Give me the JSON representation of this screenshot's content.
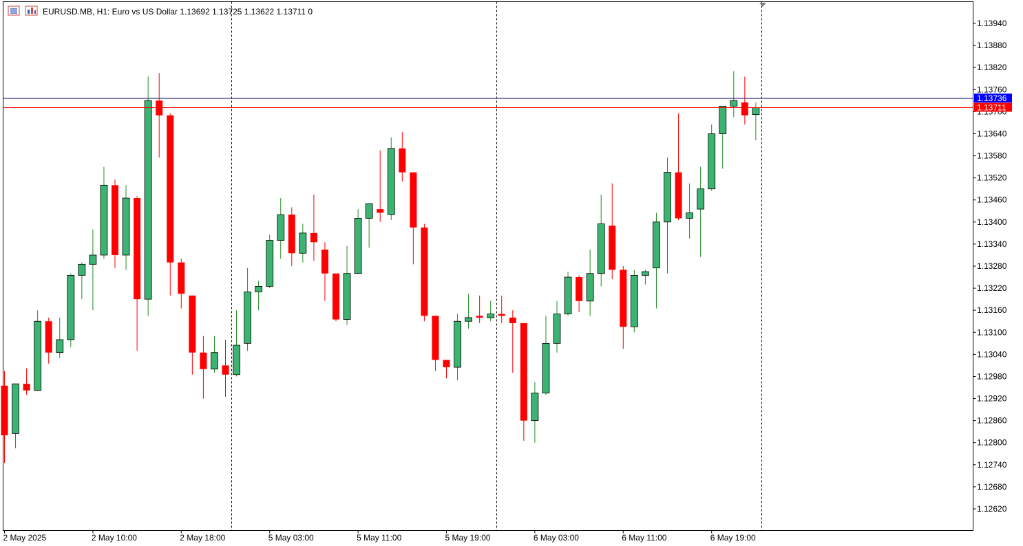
{
  "header": {
    "symbol_line": "EURUSD.MB, H1:  Euro vs US Dollar  1.13692 1.13725 1.13622 1.13711  0"
  },
  "icons": {
    "menu": "list-icon",
    "chart": "chart-window-icon"
  },
  "colors": {
    "bull": "#3cb371",
    "bear": "#ff0000",
    "wick_bull": "#228b22",
    "ask_line": "#191970",
    "ask_tag": "#0000ff",
    "bid_line": "#ff0000",
    "bid_tag": "#ff0000",
    "axis": "#000000"
  },
  "chart_data": {
    "type": "candlestick",
    "title": "",
    "symbol": "EURUSD.MB",
    "timeframe": "H1",
    "ylim": [
      1.1258,
      1.14
    ],
    "y_ticks": [
      "1.13940",
      "1.13880",
      "1.13820",
      "1.13760",
      "1.13700",
      "1.13640",
      "1.13580",
      "1.13520",
      "1.13460",
      "1.13400",
      "1.13340",
      "1.13280",
      "1.13220",
      "1.13160",
      "1.13100",
      "1.13040",
      "1.12980",
      "1.12920",
      "1.12860",
      "1.12800",
      "1.12740",
      "1.12680",
      "1.12620"
    ],
    "x_labels": [
      {
        "label": "2 May 2025",
        "index": 0
      },
      {
        "label": "2 May 10:00",
        "index": 8
      },
      {
        "label": "2 May 18:00",
        "index": 16
      },
      {
        "label": "5 May 03:00",
        "index": 24
      },
      {
        "label": "5 May 11:00",
        "index": 32
      },
      {
        "label": "5 May 19:00",
        "index": 40
      },
      {
        "label": "6 May 03:00",
        "index": 48
      },
      {
        "label": "6 May 11:00",
        "index": 56
      },
      {
        "label": "6 May 19:00",
        "index": 64
      }
    ],
    "day_separators": [
      20.5,
      44.5,
      68.5
    ],
    "ask": {
      "label": "1.13736",
      "value": 1.13736
    },
    "bid": {
      "label": "1.13711",
      "value": 1.13711
    },
    "candles": [
      {
        "o": 1.12955,
        "h": 1.12995,
        "l": 1.12745,
        "c": 1.1282
      },
      {
        "o": 1.12825,
        "h": 1.1296,
        "l": 1.12785,
        "c": 1.1296
      },
      {
        "o": 1.1296,
        "h": 1.13002,
        "l": 1.1293,
        "c": 1.12942
      },
      {
        "o": 1.12942,
        "h": 1.1316,
        "l": 1.1294,
        "c": 1.1313
      },
      {
        "o": 1.1313,
        "h": 1.1314,
        "l": 1.13015,
        "c": 1.13045
      },
      {
        "o": 1.13045,
        "h": 1.1314,
        "l": 1.1303,
        "c": 1.1308
      },
      {
        "o": 1.1308,
        "h": 1.1326,
        "l": 1.1306,
        "c": 1.13255
      },
      {
        "o": 1.13255,
        "h": 1.1329,
        "l": 1.1319,
        "c": 1.13285
      },
      {
        "o": 1.13285,
        "h": 1.1338,
        "l": 1.1316,
        "c": 1.1331
      },
      {
        "o": 1.1331,
        "h": 1.1355,
        "l": 1.133,
        "c": 1.135
      },
      {
        "o": 1.135,
        "h": 1.13515,
        "l": 1.13275,
        "c": 1.1331
      },
      {
        "o": 1.1331,
        "h": 1.135,
        "l": 1.1327,
        "c": 1.13465
      },
      {
        "o": 1.13465,
        "h": 1.1347,
        "l": 1.1305,
        "c": 1.1319
      },
      {
        "o": 1.1319,
        "h": 1.13795,
        "l": 1.13145,
        "c": 1.1373
      },
      {
        "o": 1.1373,
        "h": 1.13805,
        "l": 1.13575,
        "c": 1.1369
      },
      {
        "o": 1.1369,
        "h": 1.13695,
        "l": 1.132,
        "c": 1.1329
      },
      {
        "o": 1.1329,
        "h": 1.133,
        "l": 1.13165,
        "c": 1.13205
      },
      {
        "o": 1.132,
        "h": 1.132,
        "l": 1.12985,
        "c": 1.13045
      },
      {
        "o": 1.13045,
        "h": 1.1309,
        "l": 1.1292,
        "c": 1.13
      },
      {
        "o": 1.13,
        "h": 1.1309,
        "l": 1.1299,
        "c": 1.13045
      },
      {
        "o": 1.1301,
        "h": 1.1308,
        "l": 1.12925,
        "c": 1.12985
      },
      {
        "o": 1.12985,
        "h": 1.1316,
        "l": 1.1298,
        "c": 1.13065
      },
      {
        "o": 1.1307,
        "h": 1.13275,
        "l": 1.1305,
        "c": 1.1321
      },
      {
        "o": 1.1321,
        "h": 1.1324,
        "l": 1.1316,
        "c": 1.13225
      },
      {
        "o": 1.13225,
        "h": 1.13365,
        "l": 1.1322,
        "c": 1.1335
      },
      {
        "o": 1.1335,
        "h": 1.13465,
        "l": 1.133,
        "c": 1.1342
      },
      {
        "o": 1.1342,
        "h": 1.1344,
        "l": 1.1328,
        "c": 1.13315
      },
      {
        "o": 1.13315,
        "h": 1.13395,
        "l": 1.1329,
        "c": 1.1337
      },
      {
        "o": 1.1337,
        "h": 1.13475,
        "l": 1.13295,
        "c": 1.13345
      },
      {
        "o": 1.13325,
        "h": 1.13345,
        "l": 1.13185,
        "c": 1.1326
      },
      {
        "o": 1.1326,
        "h": 1.1326,
        "l": 1.1313,
        "c": 1.13135
      },
      {
        "o": 1.13135,
        "h": 1.13335,
        "l": 1.1312,
        "c": 1.1326
      },
      {
        "o": 1.1326,
        "h": 1.13435,
        "l": 1.1326,
        "c": 1.1341
      },
      {
        "o": 1.1341,
        "h": 1.1345,
        "l": 1.1333,
        "c": 1.1345
      },
      {
        "o": 1.13435,
        "h": 1.13595,
        "l": 1.134,
        "c": 1.13425
      },
      {
        "o": 1.1342,
        "h": 1.1363,
        "l": 1.13405,
        "c": 1.136
      },
      {
        "o": 1.136,
        "h": 1.13645,
        "l": 1.1351,
        "c": 1.13535
      },
      {
        "o": 1.13535,
        "h": 1.13535,
        "l": 1.13285,
        "c": 1.13385
      },
      {
        "o": 1.13385,
        "h": 1.13395,
        "l": 1.1313,
        "c": 1.13145
      },
      {
        "o": 1.13145,
        "h": 1.13145,
        "l": 1.12995,
        "c": 1.13025
      },
      {
        "o": 1.13025,
        "h": 1.13025,
        "l": 1.12975,
        "c": 1.13005
      },
      {
        "o": 1.13005,
        "h": 1.1315,
        "l": 1.1297,
        "c": 1.1313
      },
      {
        "o": 1.1313,
        "h": 1.13205,
        "l": 1.1311,
        "c": 1.1314
      },
      {
        "o": 1.13145,
        "h": 1.132,
        "l": 1.13125,
        "c": 1.1314
      },
      {
        "o": 1.1314,
        "h": 1.13185,
        "l": 1.1313,
        "c": 1.1315
      },
      {
        "o": 1.1315,
        "h": 1.132,
        "l": 1.13125,
        "c": 1.13145
      },
      {
        "o": 1.1314,
        "h": 1.1316,
        "l": 1.1299,
        "c": 1.13125
      },
      {
        "o": 1.13125,
        "h": 1.13125,
        "l": 1.12805,
        "c": 1.1286
      },
      {
        "o": 1.1286,
        "h": 1.12965,
        "l": 1.128,
        "c": 1.12935
      },
      {
        "o": 1.12935,
        "h": 1.13145,
        "l": 1.1293,
        "c": 1.1307
      },
      {
        "o": 1.1307,
        "h": 1.13185,
        "l": 1.13045,
        "c": 1.1315
      },
      {
        "o": 1.1315,
        "h": 1.13265,
        "l": 1.13145,
        "c": 1.1325
      },
      {
        "o": 1.1325,
        "h": 1.13255,
        "l": 1.13155,
        "c": 1.13185
      },
      {
        "o": 1.13185,
        "h": 1.13325,
        "l": 1.13145,
        "c": 1.1326
      },
      {
        "o": 1.1326,
        "h": 1.13475,
        "l": 1.13225,
        "c": 1.13395
      },
      {
        "o": 1.1339,
        "h": 1.13505,
        "l": 1.13245,
        "c": 1.1327
      },
      {
        "o": 1.1327,
        "h": 1.1328,
        "l": 1.13055,
        "c": 1.13115
      },
      {
        "o": 1.13115,
        "h": 1.1327,
        "l": 1.131,
        "c": 1.13255
      },
      {
        "o": 1.13255,
        "h": 1.1327,
        "l": 1.1323,
        "c": 1.13265
      },
      {
        "o": 1.13275,
        "h": 1.13425,
        "l": 1.13165,
        "c": 1.134
      },
      {
        "o": 1.134,
        "h": 1.13575,
        "l": 1.1326,
        "c": 1.13535
      },
      {
        "o": 1.13535,
        "h": 1.13695,
        "l": 1.13405,
        "c": 1.1341
      },
      {
        "o": 1.1341,
        "h": 1.13505,
        "l": 1.13355,
        "c": 1.13425
      },
      {
        "o": 1.13435,
        "h": 1.1355,
        "l": 1.13305,
        "c": 1.1349
      },
      {
        "o": 1.1349,
        "h": 1.13665,
        "l": 1.13485,
        "c": 1.1364
      },
      {
        "o": 1.1364,
        "h": 1.13715,
        "l": 1.13545,
        "c": 1.13715
      },
      {
        "o": 1.13715,
        "h": 1.1381,
        "l": 1.13685,
        "c": 1.1373
      },
      {
        "o": 1.13725,
        "h": 1.13795,
        "l": 1.13665,
        "c": 1.1369
      },
      {
        "o": 1.13692,
        "h": 1.13725,
        "l": 1.13622,
        "c": 1.13711
      }
    ]
  }
}
